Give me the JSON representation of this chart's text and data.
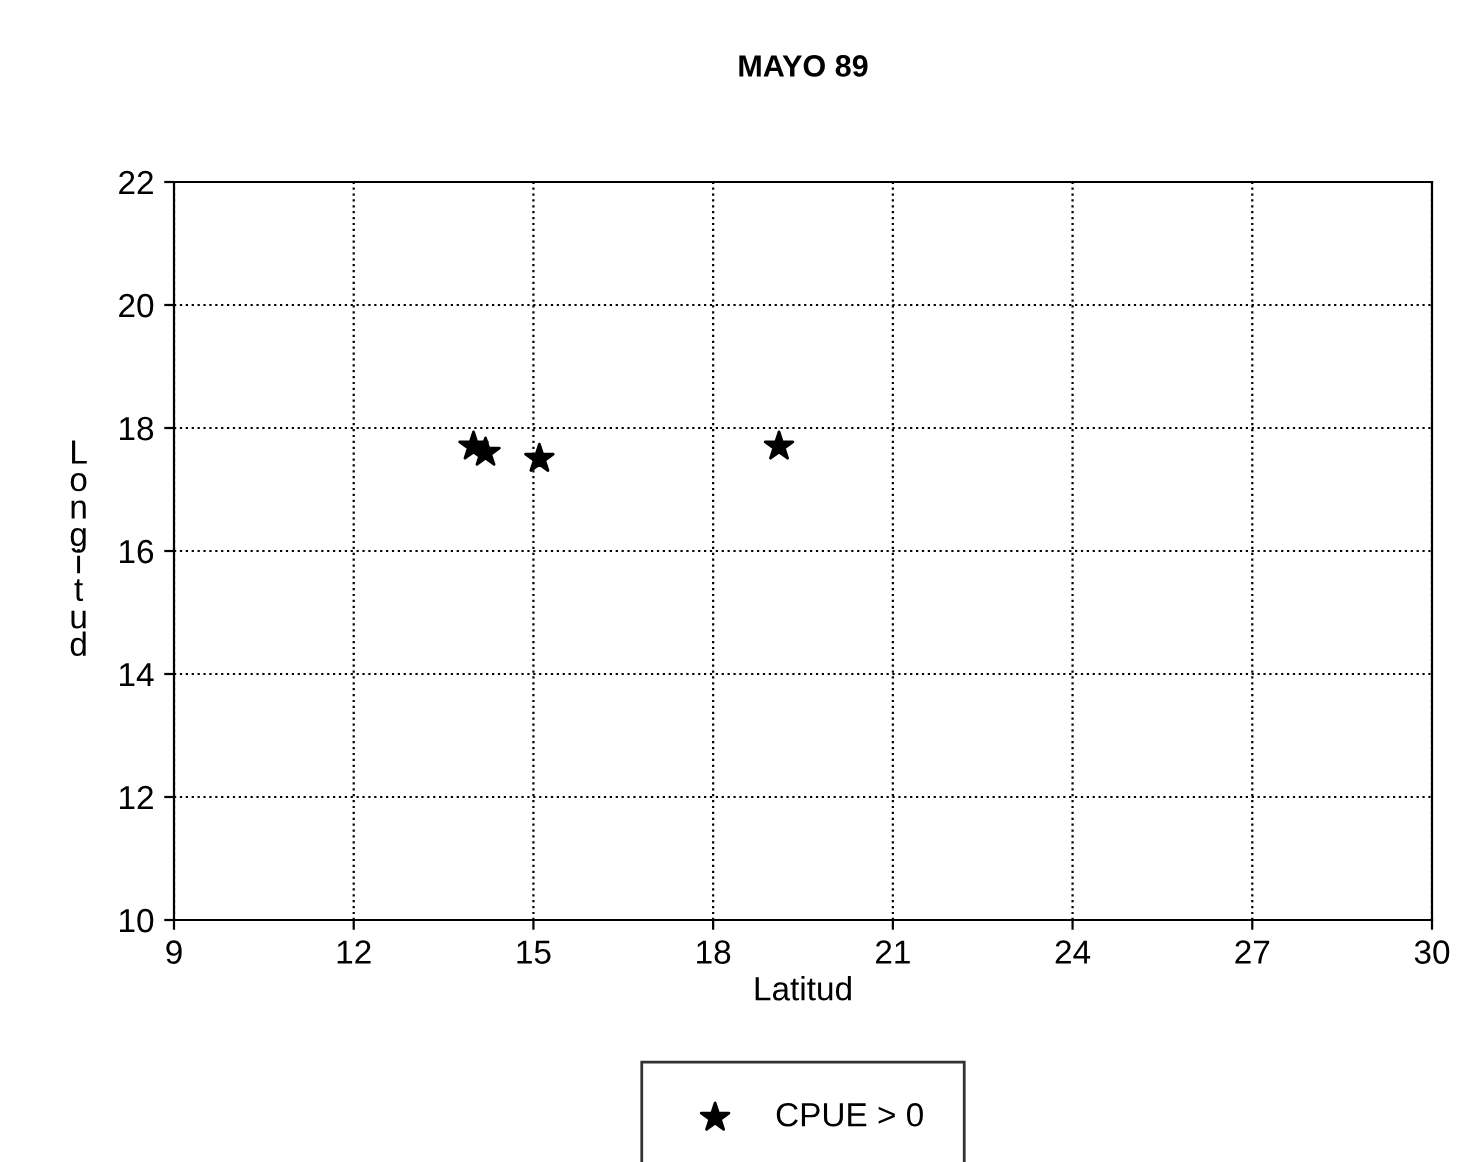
{
  "chart_data": {
    "type": "scatter",
    "title": "MAYO 89",
    "xlabel": "Latitud",
    "ylabel": "Longitud",
    "xlim": [
      9,
      30
    ],
    "xticks": [
      9,
      12,
      15,
      18,
      21,
      24,
      27,
      30
    ],
    "ylim": [
      10,
      22
    ],
    "yticks": [
      10,
      12,
      14,
      16,
      18,
      20,
      22
    ],
    "grid": true,
    "legend": "bottom",
    "marker": "star",
    "series": [
      {
        "name": "CPUE > 0",
        "color": "#000000",
        "x": [
          14.0,
          14.2,
          15.1,
          19.1
        ],
        "values": [
          17.7,
          17.6,
          17.5,
          17.7
        ]
      }
    ]
  }
}
